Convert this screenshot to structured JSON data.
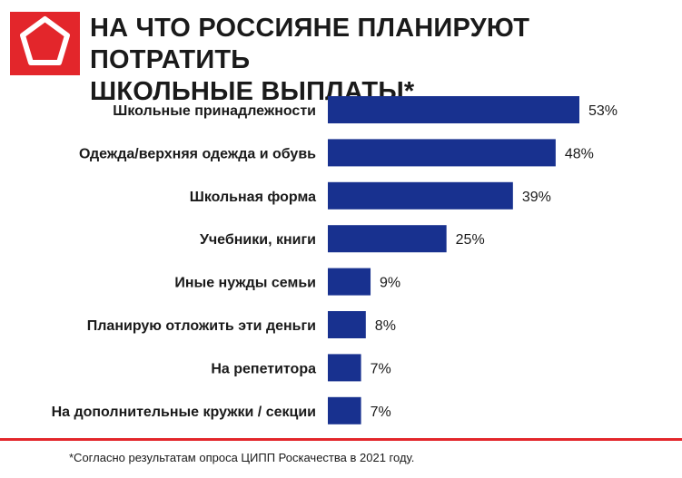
{
  "header": {
    "title_line1": "НА ЧТО РОССИЯНЕ ПЛАНИРУЮТ ПОТРАТИТЬ",
    "title_line2": "ШКОЛЬНЫЕ ВЫПЛАТЫ*",
    "logo_icon": "pentagon-logo-icon"
  },
  "colors": {
    "bar": "#18318f",
    "accent": "#e3262b"
  },
  "chart_data": {
    "type": "bar",
    "orientation": "horizontal",
    "categories": [
      "Школьные принадлежности",
      "Одежда/верхняя одежда и обувь",
      "Школьная форма",
      "Учебники, книги",
      "Иные нужды семьи",
      "Планирую отложить эти деньги",
      "На репетитора",
      "На дополнительные кружки / секции"
    ],
    "values": [
      53,
      48,
      39,
      25,
      9,
      8,
      7,
      7
    ],
    "value_labels": [
      "53%",
      "48%",
      "39%",
      "25%",
      "9%",
      "8%",
      "7%",
      "7%"
    ],
    "unit": "%",
    "grid": false,
    "legend": false
  },
  "footnote": "*Согласно результатам опроса ЦИПП Роскачества в 2021 году."
}
